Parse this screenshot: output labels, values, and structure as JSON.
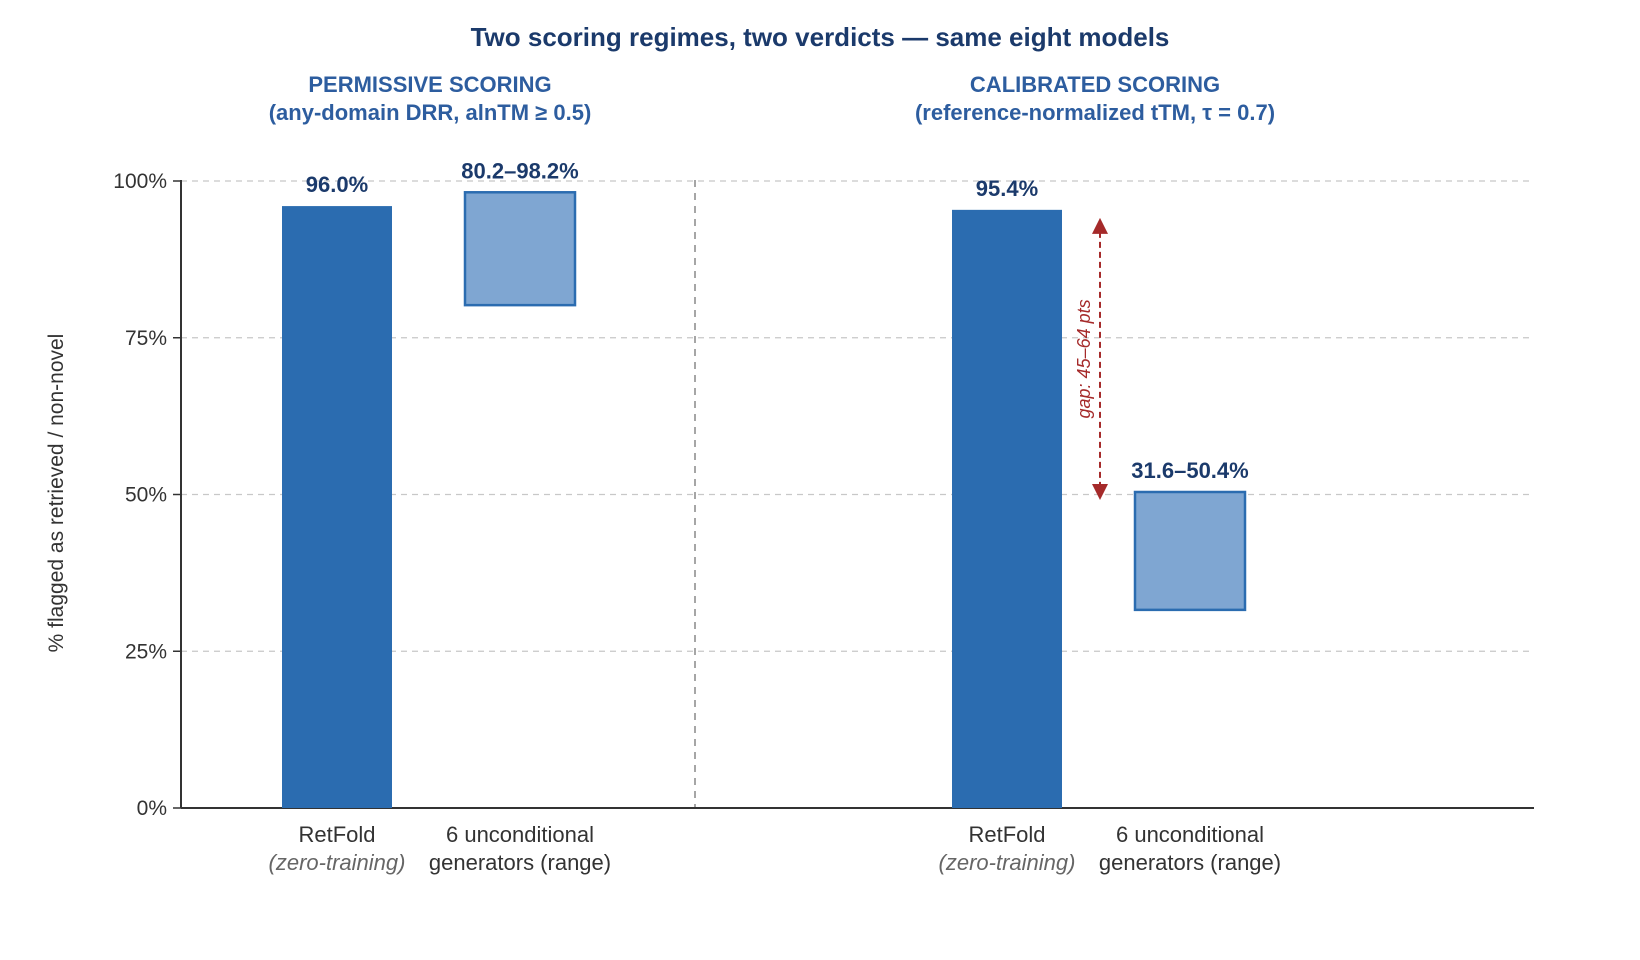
{
  "chart_data": {
    "type": "bar",
    "title": "Two scoring regimes, two verdicts — same eight models",
    "ylabel": "% flagged as retrieved / non-novel",
    "ylim": [
      0,
      100
    ],
    "y_ticks": [
      "0%",
      "25%",
      "50%",
      "75%",
      "100%"
    ],
    "grid": true,
    "colors": {
      "solid": "#2b6cb0",
      "range_fill": "#7fa6d2",
      "range_edge": "#2b6cb0",
      "gap": "#a52a2a",
      "title": "#1b3a6b",
      "panel_head": "#2d5d9f"
    },
    "panels": [
      {
        "heading": [
          "PERMISSIVE SCORING",
          "(any-domain DRR, alnTM ≥ 0.5)"
        ],
        "bars": [
          {
            "category": [
              "RetFold",
              "(zero-training)"
            ],
            "kind": "value",
            "value": 96.0,
            "label": "96.0%"
          },
          {
            "category": [
              "6 unconditional",
              "generators (range)"
            ],
            "kind": "range",
            "low": 80.2,
            "high": 98.2,
            "label": "80.2–98.2%"
          }
        ]
      },
      {
        "heading": [
          "CALIBRATED SCORING",
          "(reference-normalized tTM, τ = 0.7)"
        ],
        "bars": [
          {
            "category": [
              "RetFold",
              "(zero-training)"
            ],
            "kind": "value",
            "value": 95.4,
            "label": "95.4%"
          },
          {
            "category": [
              "6 unconditional",
              "generators (range)"
            ],
            "kind": "range",
            "low": 31.6,
            "high": 50.4,
            "label": "31.6–50.4%"
          }
        ],
        "annotation": {
          "text": "gap: 45–64 pts",
          "from": 50.4,
          "to": 95.4
        }
      }
    ]
  }
}
